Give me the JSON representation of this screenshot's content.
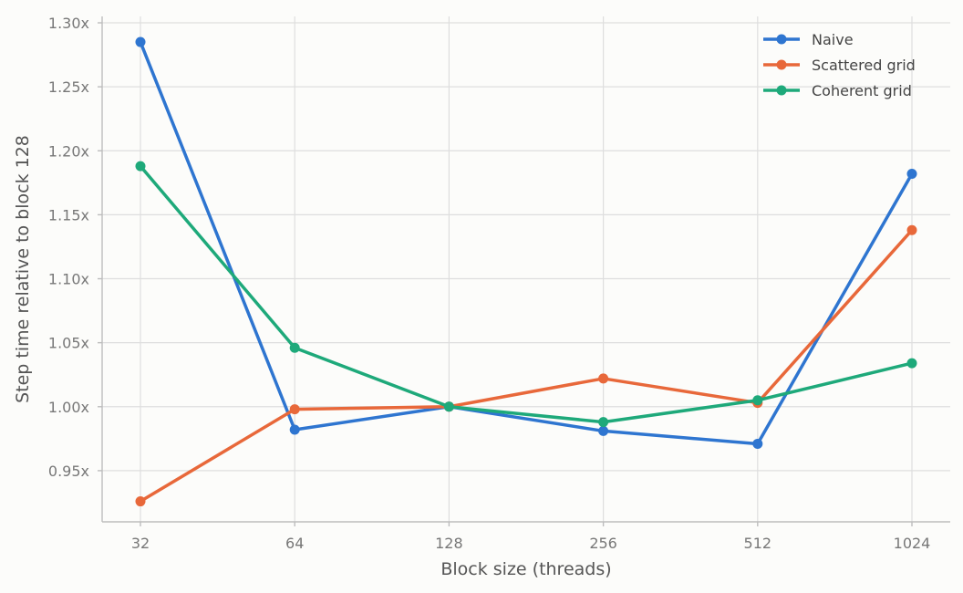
{
  "chart_data": {
    "type": "line",
    "title": "",
    "xlabel": "Block size (threads)",
    "ylabel": "Step time relative to block 128",
    "categories": [
      "32",
      "64",
      "128",
      "256",
      "512",
      "1024"
    ],
    "ylim": [
      0.91,
      1.305
    ],
    "yticks": [
      0.95,
      1.0,
      1.05,
      1.1,
      1.15,
      1.2,
      1.25,
      1.3
    ],
    "ytick_labels": [
      "0.95x",
      "1.00x",
      "1.05x",
      "1.10x",
      "1.15x",
      "1.20x",
      "1.25x",
      "1.30x"
    ],
    "grid": true,
    "legend_position": "top-right",
    "series": [
      {
        "name": "Naive",
        "color": "#2e75d0",
        "values": [
          1.285,
          0.982,
          1.0,
          0.981,
          0.971,
          1.182
        ]
      },
      {
        "name": "Scattered grid",
        "color": "#e8683a",
        "values": [
          0.926,
          0.998,
          1.0,
          1.022,
          1.003,
          1.138
        ]
      },
      {
        "name": "Coherent grid",
        "color": "#1ea97a",
        "values": [
          1.188,
          1.046,
          1.0,
          0.988,
          1.005,
          1.034
        ]
      }
    ]
  }
}
